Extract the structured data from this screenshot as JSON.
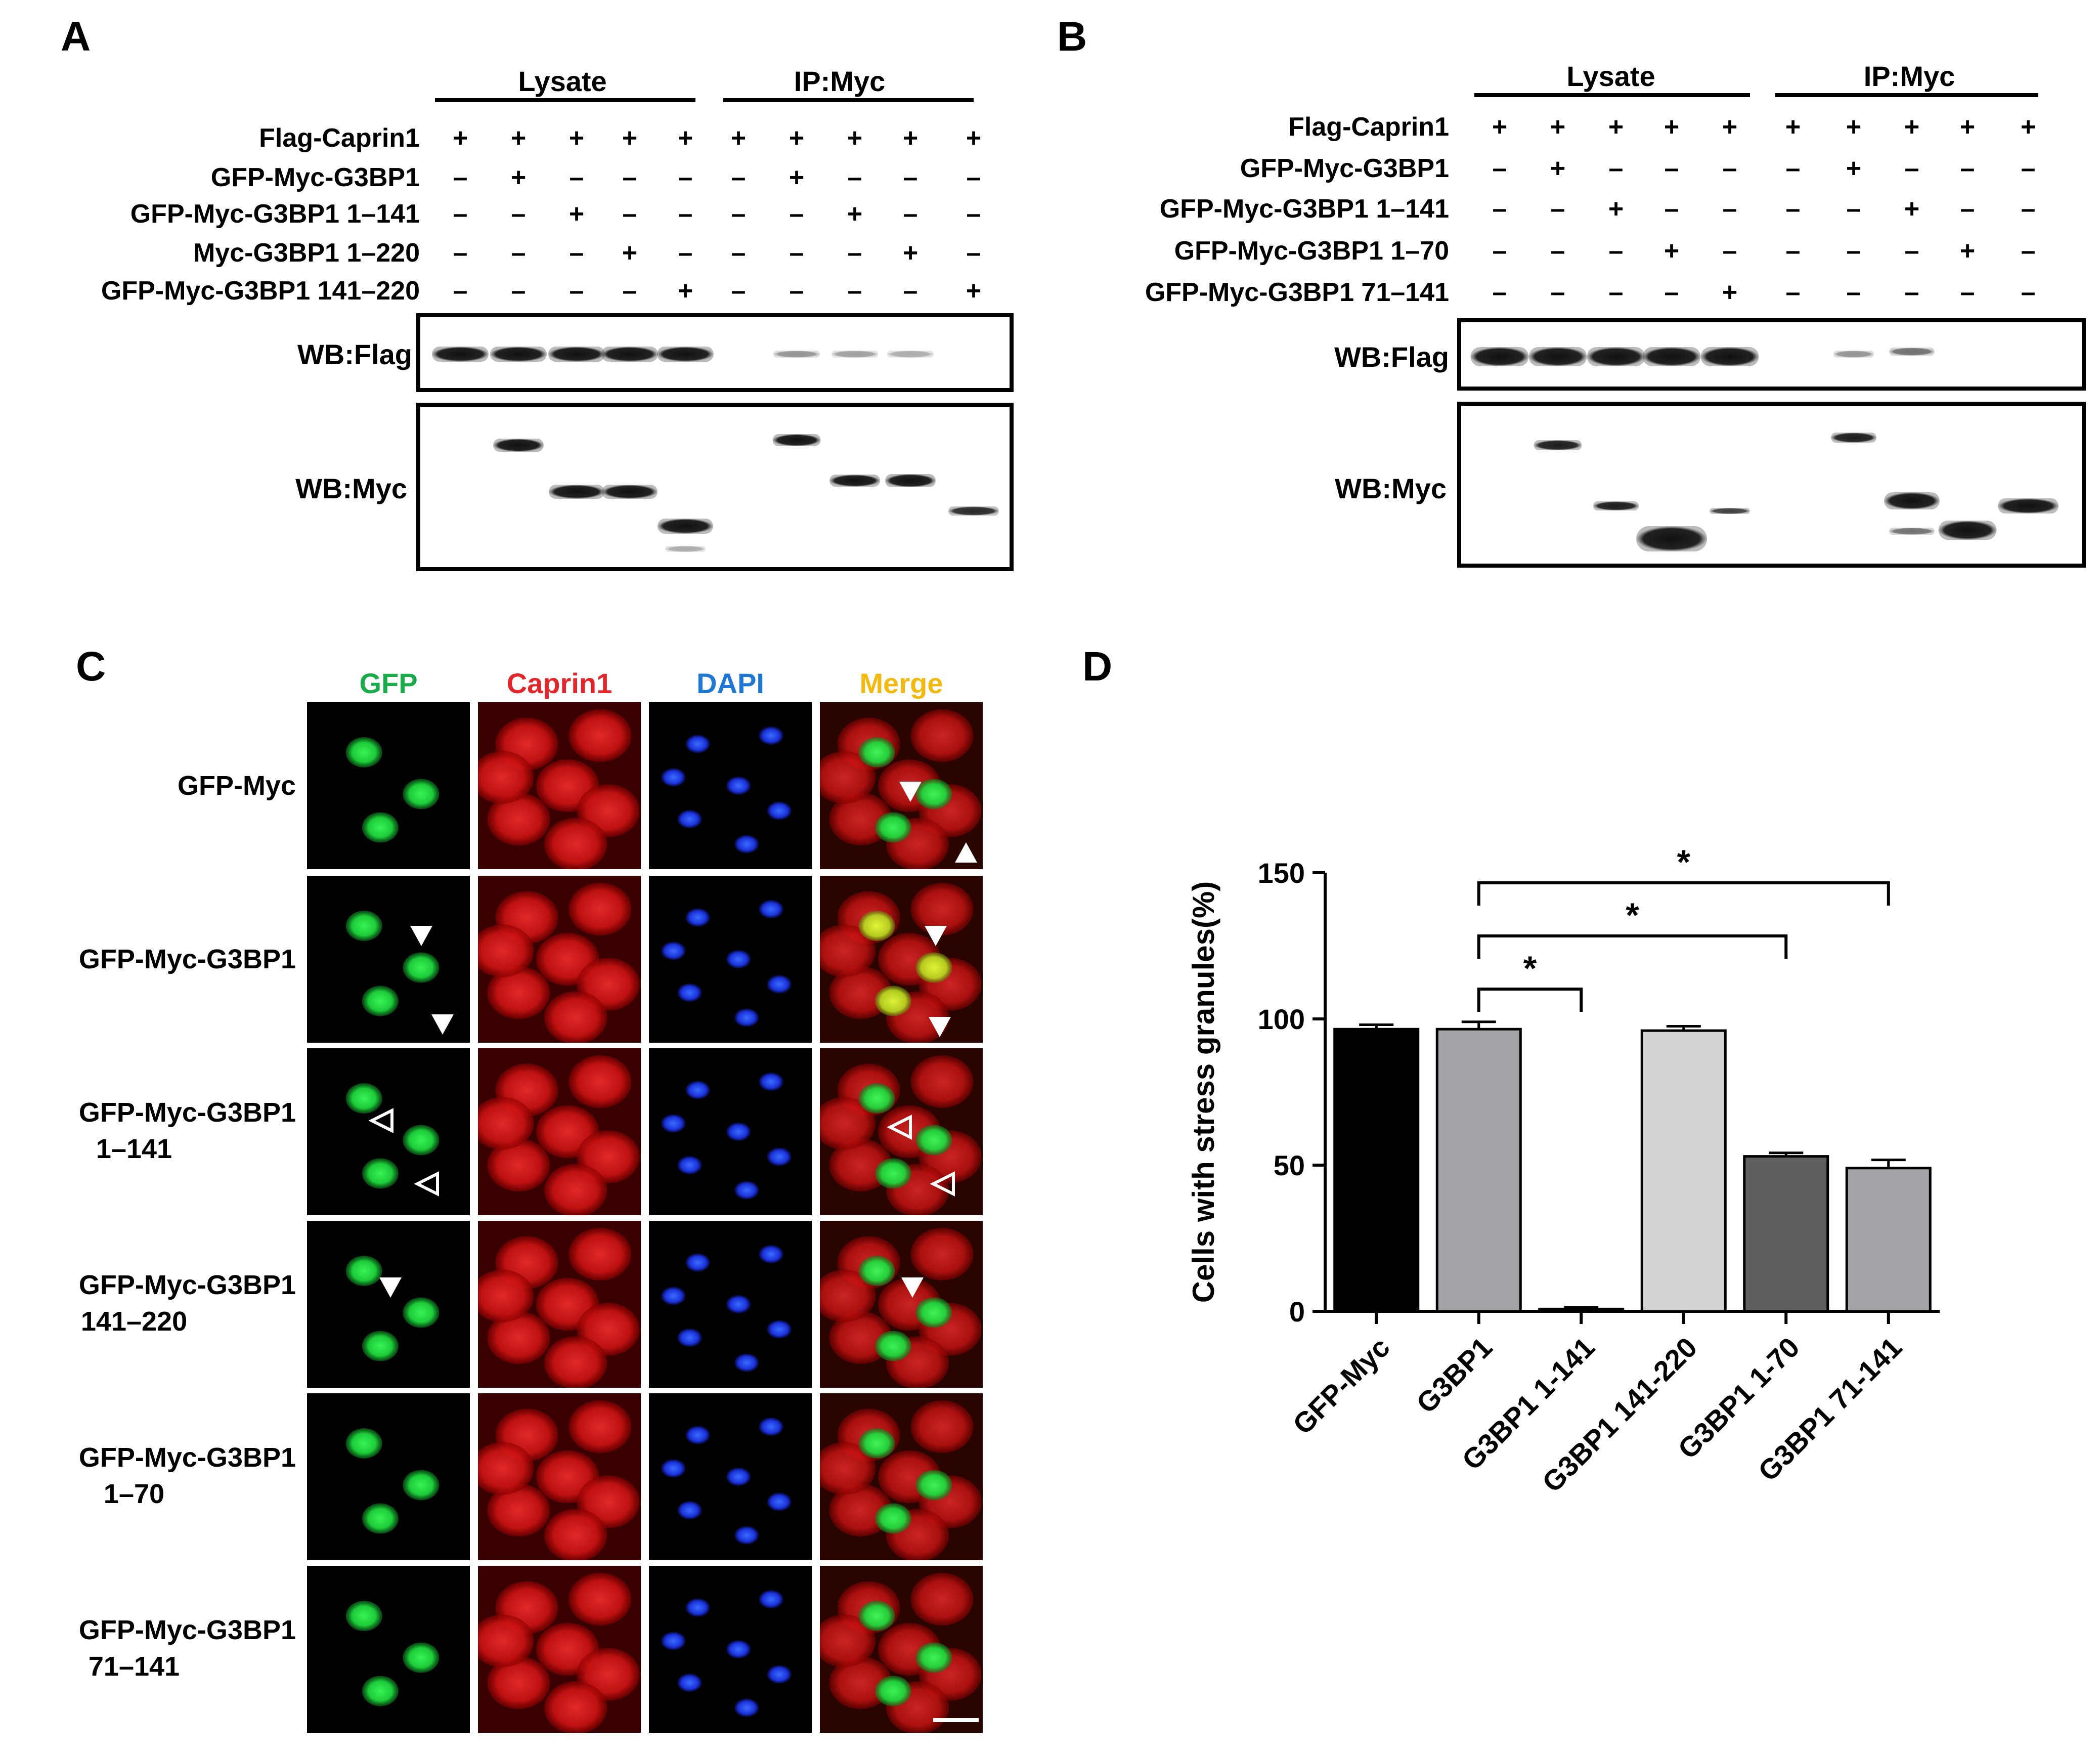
{
  "panelA": {
    "label": "A",
    "header_lysate": "Lysate",
    "header_ip": "IP:Myc",
    "rows": [
      {
        "name": "Flag-Caprin1",
        "signs": [
          "+",
          "+",
          "+",
          "+",
          "+",
          "+",
          "+",
          "+",
          "+",
          "+"
        ]
      },
      {
        "name": "GFP-Myc-G3BP1",
        "signs": [
          "–",
          "+",
          "–",
          "–",
          "–",
          "–",
          "+",
          "–",
          "–",
          "–"
        ]
      },
      {
        "name": "GFP-Myc-G3BP1 1–141",
        "signs": [
          "–",
          "–",
          "+",
          "–",
          "–",
          "–",
          "–",
          "+",
          "–",
          "–"
        ]
      },
      {
        "name": "Myc-G3BP1 1–220",
        "signs": [
          "–",
          "–",
          "–",
          "+",
          "–",
          "–",
          "–",
          "–",
          "+",
          "–"
        ]
      },
      {
        "name": "GFP-Myc-G3BP1 141–220",
        "signs": [
          "–",
          "–",
          "–",
          "–",
          "+",
          "–",
          "–",
          "–",
          "–",
          "+"
        ]
      }
    ],
    "blot_flag_label": "WB:Flag",
    "blot_myc_label": "WB:Myc"
  },
  "panelB": {
    "label": "B",
    "header_lysate": "Lysate",
    "header_ip": "IP:Myc",
    "rows": [
      {
        "name": "Flag-Caprin1",
        "signs": [
          "+",
          "+",
          "+",
          "+",
          "+",
          "+",
          "+",
          "+",
          "+",
          "+"
        ]
      },
      {
        "name": "GFP-Myc-G3BP1",
        "signs": [
          "–",
          "+",
          "–",
          "–",
          "–",
          "–",
          "+",
          "–",
          "–",
          "–"
        ]
      },
      {
        "name": "GFP-Myc-G3BP1 1–141",
        "signs": [
          "–",
          "–",
          "+",
          "–",
          "–",
          "–",
          "–",
          "+",
          "–",
          "–"
        ]
      },
      {
        "name": "GFP-Myc-G3BP1 1–70",
        "signs": [
          "–",
          "–",
          "–",
          "+",
          "–",
          "–",
          "–",
          "–",
          "+",
          "–"
        ]
      },
      {
        "name": "GFP-Myc-G3BP1 71–141",
        "signs": [
          "–",
          "–",
          "–",
          "–",
          "+",
          "–",
          "–",
          "–",
          "–",
          "–"
        ]
      }
    ],
    "blot_flag_label": "WB:Flag",
    "blot_myc_label": "WB:Myc"
  },
  "panelC": {
    "label": "C",
    "columns": [
      {
        "name": "GFP",
        "color": "#1aab4b"
      },
      {
        "name": "Caprin1",
        "color": "#e3262b"
      },
      {
        "name": "DAPI",
        "color": "#1f77d4"
      },
      {
        "name": "Merge",
        "color": "#f2b90f"
      }
    ],
    "rows": [
      {
        "line1": "GFP-Myc",
        "line2": ""
      },
      {
        "line1": "GFP-Myc-G3BP1",
        "line2": ""
      },
      {
        "line1": "GFP-Myc-G3BP1",
        "line2": "1–141"
      },
      {
        "line1": "GFP-Myc-G3BP1",
        "line2": "141–220"
      },
      {
        "line1": "GFP-Myc-G3BP1",
        "line2": "1–70"
      },
      {
        "line1": "GFP-Myc-G3BP1",
        "line2": "71–141"
      }
    ]
  },
  "panelD": {
    "label": "D"
  },
  "chart_data": {
    "type": "bar",
    "title": "",
    "ylabel": "Cells with stress granules(%)",
    "xlabel": "",
    "categories": [
      "GFP-Myc",
      "G3BP1",
      "G3BP1 1-141",
      "G3BP1 141-220",
      "G3BP1 1-70",
      "G3BP1 71-141"
    ],
    "values": [
      96.5,
      96.5,
      0.8,
      96,
      53,
      49
    ],
    "errors": [
      1.5,
      2.5,
      0.6,
      1.5,
      1.2,
      2.8
    ],
    "bar_colors": [
      "#000000",
      "#a5a5a9",
      "#5b5b5b",
      "#d3d3d3",
      "#5f5f5f",
      "#a5a5a9"
    ],
    "ylim": [
      0,
      150
    ],
    "yticks": [
      0,
      50,
      100,
      150
    ],
    "significance": [
      {
        "from": 1,
        "to": 2,
        "label": "*"
      },
      {
        "from": 1,
        "to": 4,
        "label": "*"
      },
      {
        "from": 1,
        "to": 5,
        "label": "*"
      }
    ]
  }
}
